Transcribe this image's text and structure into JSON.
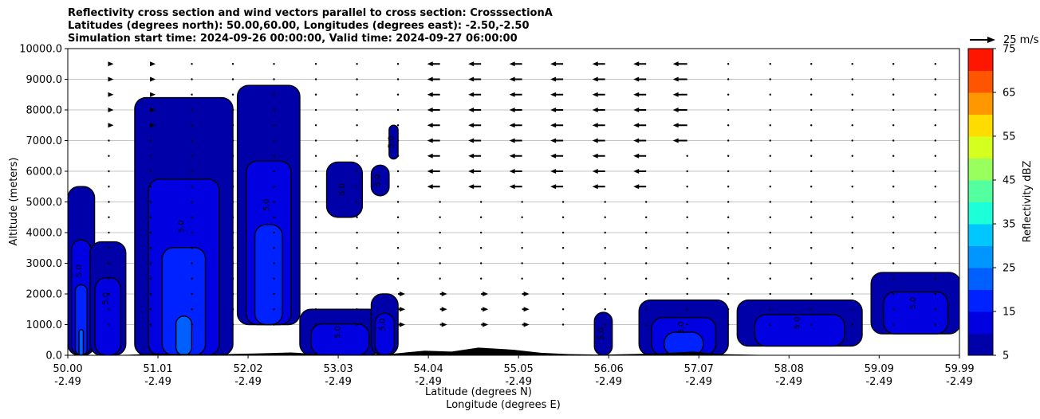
{
  "titles": [
    "Reflectivity cross section and wind vectors parallel to cross section: CrosssectionA",
    "Latitudes (degrees north): 50.00,60.00, Longitudes (degrees east): -2.50,-2.50",
    "Simulation start time: 2024-09-26 00:00:00, Valid time: 2024-09-27 06:00:00"
  ],
  "reference_vector_label": "25 m/s",
  "chart_data": {
    "type": "heatmap",
    "xlabel_line1": "Latitude (degrees N)",
    "xlabel_line2": "Longitude (degrees E)",
    "ylabel": "Altitude (meters)",
    "colorbar_label": "Reflectivity dBZ",
    "xlim": [
      50.0,
      59.99
    ],
    "ylim": [
      0,
      10000
    ],
    "grid": "horizontal",
    "x_ticks": [
      {
        "lat": "50.00",
        "lon": "-2.49",
        "value": 50.0
      },
      {
        "lat": "51.01",
        "lon": "-2.49",
        "value": 51.01
      },
      {
        "lat": "52.02",
        "lon": "-2.49",
        "value": 52.02
      },
      {
        "lat": "53.03",
        "lon": "-2.49",
        "value": 53.03
      },
      {
        "lat": "54.04",
        "lon": "-2.49",
        "value": 54.04
      },
      {
        "lat": "55.05",
        "lon": "-2.49",
        "value": 55.05
      },
      {
        "lat": "56.06",
        "lon": "-2.49",
        "value": 56.06
      },
      {
        "lat": "57.07",
        "lon": "-2.49",
        "value": 57.07
      },
      {
        "lat": "58.08",
        "lon": "-2.49",
        "value": 58.08
      },
      {
        "lat": "59.09",
        "lon": "-2.49",
        "value": 59.09
      },
      {
        "lat": "59.99",
        "lon": "-2.49",
        "value": 59.99
      }
    ],
    "y_ticks": [
      {
        "label": "0.0",
        "value": 0
      },
      {
        "label": "1000.0",
        "value": 1000
      },
      {
        "label": "2000.0",
        "value": 2000
      },
      {
        "label": "3000.0",
        "value": 3000
      },
      {
        "label": "4000.0",
        "value": 4000
      },
      {
        "label": "5000.0",
        "value": 5000
      },
      {
        "label": "6000.0",
        "value": 6000
      },
      {
        "label": "7000.0",
        "value": 7000
      },
      {
        "label": "8000.0",
        "value": 8000
      },
      {
        "label": "9000.0",
        "value": 9000
      },
      {
        "label": "10000.0",
        "value": 10000
      }
    ],
    "colorbar": {
      "min": 5,
      "max": 75,
      "levels": [
        5,
        10,
        15,
        20,
        25,
        30,
        35,
        40,
        45,
        50,
        55,
        60,
        65,
        70,
        75
      ],
      "colors": [
        "#0000a8",
        "#0000e0",
        "#0022ff",
        "#0060ff",
        "#0096ff",
        "#00c8ff",
        "#1dffd9",
        "#54ff9f",
        "#99ff5c",
        "#d4ff1f",
        "#ffdc00",
        "#ff9800",
        "#ff5400",
        "#ff1600",
        "#a80000"
      ],
      "tick_labels": [
        "5",
        "15",
        "25",
        "35",
        "45",
        "55",
        "65",
        "75"
      ]
    },
    "reflectivity_cells": [
      {
        "x": [
          50.0,
          50.3
        ],
        "z": [
          0,
          5500
        ],
        "max_dbz": 20
      },
      {
        "x": [
          50.25,
          50.65
        ],
        "z": [
          0,
          3700
        ],
        "max_dbz": 10
      },
      {
        "x": [
          50.75,
          51.85
        ],
        "z": [
          0,
          8400
        ],
        "max_dbz": 20
      },
      {
        "x": [
          51.9,
          52.6
        ],
        "z": [
          1000,
          8800
        ],
        "max_dbz": 15
      },
      {
        "x": [
          52.9,
          53.3
        ],
        "z": [
          4500,
          6300
        ],
        "max_dbz": 5
      },
      {
        "x": [
          53.4,
          53.6
        ],
        "z": [
          5200,
          6200
        ],
        "max_dbz": 5
      },
      {
        "x": [
          53.6,
          53.7
        ],
        "z": [
          6400,
          7500
        ],
        "max_dbz": 5
      },
      {
        "x": [
          52.6,
          53.5
        ],
        "z": [
          0,
          1500
        ],
        "max_dbz": 10
      },
      {
        "x": [
          53.4,
          53.7
        ],
        "z": [
          0,
          2000
        ],
        "max_dbz": 10
      },
      {
        "x": [
          55.9,
          56.1
        ],
        "z": [
          0,
          1400
        ],
        "max_dbz": 5
      },
      {
        "x": [
          56.4,
          57.4
        ],
        "z": [
          0,
          1800
        ],
        "max_dbz": 15
      },
      {
        "x": [
          57.5,
          58.9
        ],
        "z": [
          300,
          1800
        ],
        "max_dbz": 10
      },
      {
        "x": [
          59.0,
          60.0
        ],
        "z": [
          700,
          2700
        ],
        "max_dbz": 10
      }
    ],
    "contour_labels": [
      "5.0",
      "10.0",
      "15.0",
      "20.0"
    ],
    "wind_vectors": {
      "columns_x": [
        50.46,
        50.93,
        51.39,
        51.85,
        52.31,
        52.78,
        53.24,
        53.7,
        54.17,
        54.63,
        55.09,
        55.55,
        56.02,
        56.48,
        56.94,
        57.4,
        57.87,
        58.33,
        58.79,
        59.25,
        59.72
      ],
      "rows_z": [
        9500,
        9000,
        8500,
        8000,
        7500,
        7000,
        6500,
        6000,
        5500,
        5000,
        4500,
        4000,
        3500,
        3000,
        2500,
        2000,
        1500,
        1000
      ],
      "reference_speed_ms": 25
    }
  }
}
